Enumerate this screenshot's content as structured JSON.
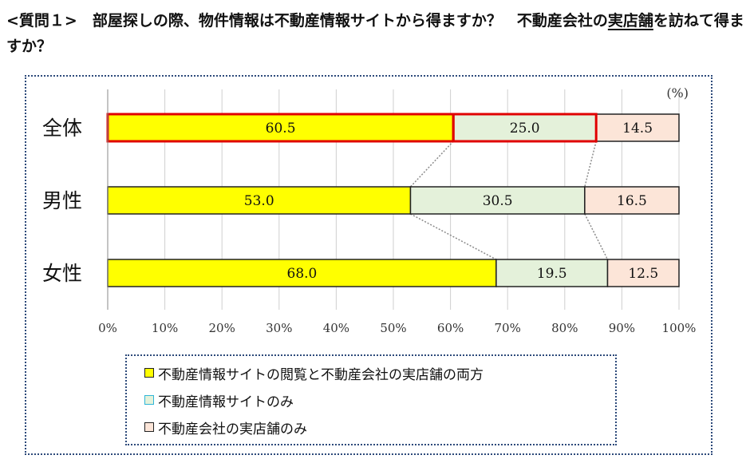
{
  "title": {
    "main": "<質問１>　部屋探しの際、物件情報は不動産情報サイトから得ますか？　不動産会社の",
    "underlined": "実店舗",
    "tail": "を訪ねて得ますか？"
  },
  "chart_data": {
    "type": "bar",
    "orientation": "horizontal",
    "stacked": true,
    "unit_label": "(%)",
    "categories": [
      "全体",
      "男性",
      "女性"
    ],
    "series": [
      {
        "name": "不動産情報サイトの閲覧と不動産会社の実店舗の両方",
        "values": [
          60.5,
          53.0,
          68.0
        ],
        "color": "#ffff00"
      },
      {
        "name": "不動産情報サイトのみ",
        "values": [
          25.0,
          30.5,
          19.5
        ],
        "color": "#e4f1da"
      },
      {
        "name": "不動産会社の実店舗のみ",
        "values": [
          14.5,
          16.5,
          12.5
        ],
        "color": "#fce5d8"
      }
    ],
    "value_labels": [
      [
        "60.5",
        "25.0",
        "14.5"
      ],
      [
        "53.0",
        "30.5",
        "16.5"
      ],
      [
        "68.0",
        "19.5",
        "12.5"
      ]
    ],
    "xlim": [
      0,
      100
    ],
    "x_ticks": [
      "0%",
      "10%",
      "20%",
      "30%",
      "40%",
      "50%",
      "60%",
      "70%",
      "80%",
      "90%",
      "100%"
    ],
    "grid": true,
    "highlight_category": "全体",
    "highlight_color": "#e00000",
    "legend_position": "bottom"
  },
  "legend_swatch_borders": [
    "#222222",
    "#2fb6d8",
    "#222222"
  ]
}
